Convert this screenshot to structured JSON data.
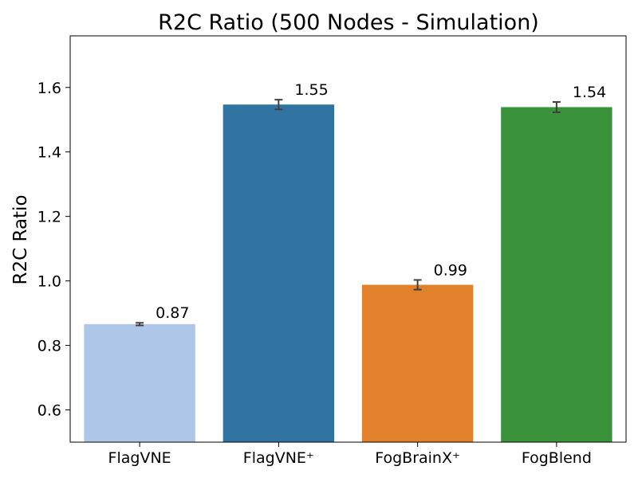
{
  "chart_data": {
    "type": "bar",
    "title": "R2C Ratio (500 Nodes - Simulation)",
    "xlabel": "",
    "ylabel": "R2C Ratio",
    "categories": [
      "FlagVNE",
      "FlagVNE⁺",
      "FogBrainX⁺",
      "FogBlend"
    ],
    "values": [
      0.866,
      1.547,
      0.988,
      1.539
    ],
    "error": [
      0.004,
      0.015,
      0.015,
      0.016
    ],
    "data_labels": [
      "0.87",
      "1.55",
      "0.99",
      "1.54"
    ],
    "colors": [
      "#aec7e8",
      "#3274a1",
      "#e1812c",
      "#3a923a"
    ],
    "error_color": "#404040",
    "ylim": [
      0.5,
      1.76
    ],
    "yticks": [
      0.6,
      0.8,
      1.0,
      1.2,
      1.4,
      1.6
    ],
    "ytick_labels": [
      "0.6",
      "0.8",
      "1.0",
      "1.2",
      "1.4",
      "1.6"
    ],
    "grid": false,
    "legend": "none"
  }
}
